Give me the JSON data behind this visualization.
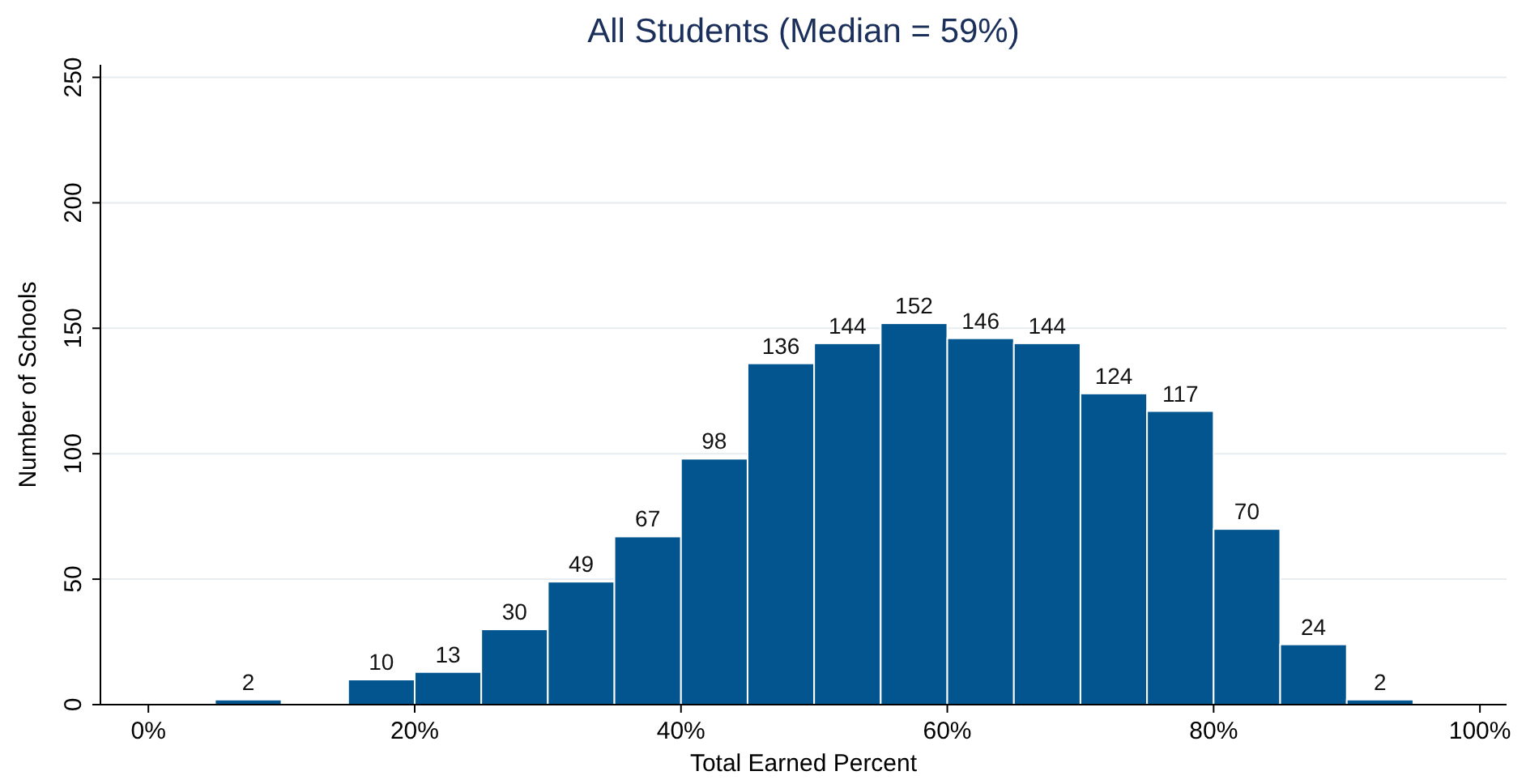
{
  "chart_data": {
    "type": "histogram",
    "title": "All Students (Median = 59%)",
    "xlabel": "Total Earned Percent",
    "ylabel": "Number of Schools",
    "bins": [
      5,
      10,
      15,
      20,
      25,
      30,
      35,
      40,
      45,
      50,
      55,
      60,
      65,
      70,
      75,
      80,
      85,
      90,
      95
    ],
    "values": [
      2,
      0,
      10,
      13,
      30,
      49,
      67,
      98,
      136,
      144,
      152,
      146,
      144,
      124,
      117,
      70,
      24,
      2
    ],
    "value_labels": [
      "2",
      null,
      "10",
      "13",
      "30",
      "49",
      "67",
      "98",
      "136",
      "144",
      "152",
      "146",
      "144",
      "124",
      "117",
      "70",
      "24",
      "2"
    ],
    "color": "#03558f",
    "xlim": [
      -3.6,
      102
    ],
    "xticks": [
      {
        "value": 0,
        "label": "0%"
      },
      {
        "value": 20,
        "label": "20%"
      },
      {
        "value": 40,
        "label": "40%"
      },
      {
        "value": 60,
        "label": "60%"
      },
      {
        "value": 80,
        "label": "80%"
      },
      {
        "value": 100,
        "label": "100%"
      }
    ],
    "ylim": [
      0,
      255
    ],
    "yticks": [
      0,
      50,
      100,
      150,
      200,
      250
    ],
    "grid": "y"
  }
}
